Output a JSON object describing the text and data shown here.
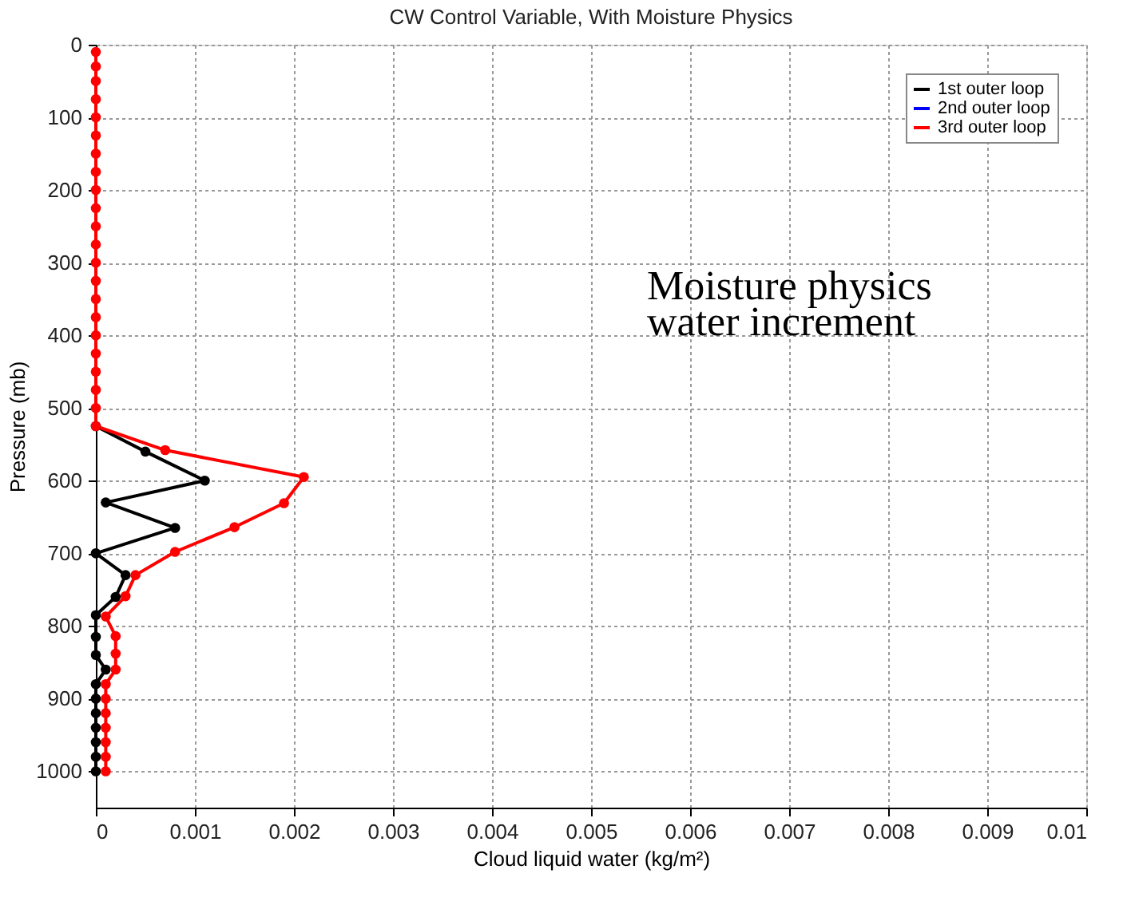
{
  "chart_data": {
    "type": "line",
    "title": "CW Control Variable, With Moisture Physics",
    "xlabel": "Cloud liquid water (kg/m²)",
    "ylabel": "Pressure (mb)",
    "annotations": [
      "Moisture physics",
      "water increment"
    ],
    "xlim": [
      0,
      0.01
    ],
    "xticks": [
      0,
      0.001,
      0.002,
      0.003,
      0.004,
      0.005,
      0.006,
      0.007,
      0.008,
      0.009,
      0.01
    ],
    "ylim": [
      1050,
      0
    ],
    "yticks": [
      0,
      100,
      200,
      300,
      400,
      500,
      600,
      700,
      800,
      900,
      1000
    ],
    "grid": true,
    "legend": "top right",
    "marker": "circle",
    "line_style": "solid",
    "orientation": "horizontal",
    "series": [
      {
        "name": "1st outer loop",
        "color": "#000000",
        "values": [
          0,
          0.0005,
          0.0011,
          0.0001,
          0.0008,
          0,
          0.0003,
          0.0002,
          0,
          0,
          0,
          0.0001,
          0,
          0,
          0,
          0,
          0,
          0,
          0
        ],
        "x": [
          525,
          560,
          600,
          630,
          665,
          700,
          730,
          760,
          785,
          815,
          840,
          860,
          880,
          900,
          920,
          940,
          960,
          980,
          1000
        ]
      },
      {
        "name": "2nd outer loop",
        "color": "#0000ff",
        "values": [
          null
        ],
        "x": [
          null
        ]
      },
      {
        "name": "3rd outer loop",
        "color": "#ff0000",
        "values": [
          0,
          0,
          0,
          0,
          0,
          0,
          0,
          0,
          0,
          0,
          0,
          0,
          0,
          0,
          0,
          0,
          0,
          0,
          0,
          0,
          0,
          0,
          0.0007,
          0.0021,
          0.0019,
          0.0014,
          0.0008,
          0.0004,
          0.0003,
          0.0001,
          0.0002,
          0.0002,
          0.0002,
          0.0001,
          0.0001,
          0.0001,
          0.0001,
          0.0001,
          0.0001,
          0.0001
        ],
        "x": [
          10,
          30,
          50,
          75,
          100,
          125,
          150,
          175,
          200,
          225,
          250,
          275,
          300,
          325,
          350,
          375,
          400,
          425,
          450,
          475,
          500,
          525,
          558,
          595,
          631,
          664,
          698,
          730,
          759,
          787,
          814,
          838,
          860,
          880,
          900,
          920,
          940,
          960,
          980,
          1000
        ]
      }
    ]
  }
}
